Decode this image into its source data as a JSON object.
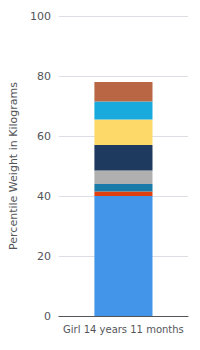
{
  "chart_data": {
    "type": "bar",
    "stacked": true,
    "categories": [
      "Girl 14 years 11 months"
    ],
    "series": [
      {
        "color": "#4295e8",
        "values": [
          40.0
        ]
      },
      {
        "color": "#e04010",
        "values": [
          1.5
        ]
      },
      {
        "color": "#1a7aaa",
        "values": [
          2.5
        ]
      },
      {
        "color": "#b0b0b0",
        "values": [
          4.5
        ]
      },
      {
        "color": "#1e3a5f",
        "values": [
          8.5
        ]
      },
      {
        "color": "#fdd96a",
        "values": [
          8.5
        ]
      },
      {
        "color": "#18aadd",
        "values": [
          6.0
        ]
      },
      {
        "color": "#b86644",
        "values": [
          6.5
        ]
      }
    ],
    "ylabel": "Percentile Weight in Kilograms",
    "ylim": [
      0,
      100
    ],
    "yticks": [
      0,
      20,
      40,
      60,
      80,
      100
    ],
    "grid": true
  }
}
